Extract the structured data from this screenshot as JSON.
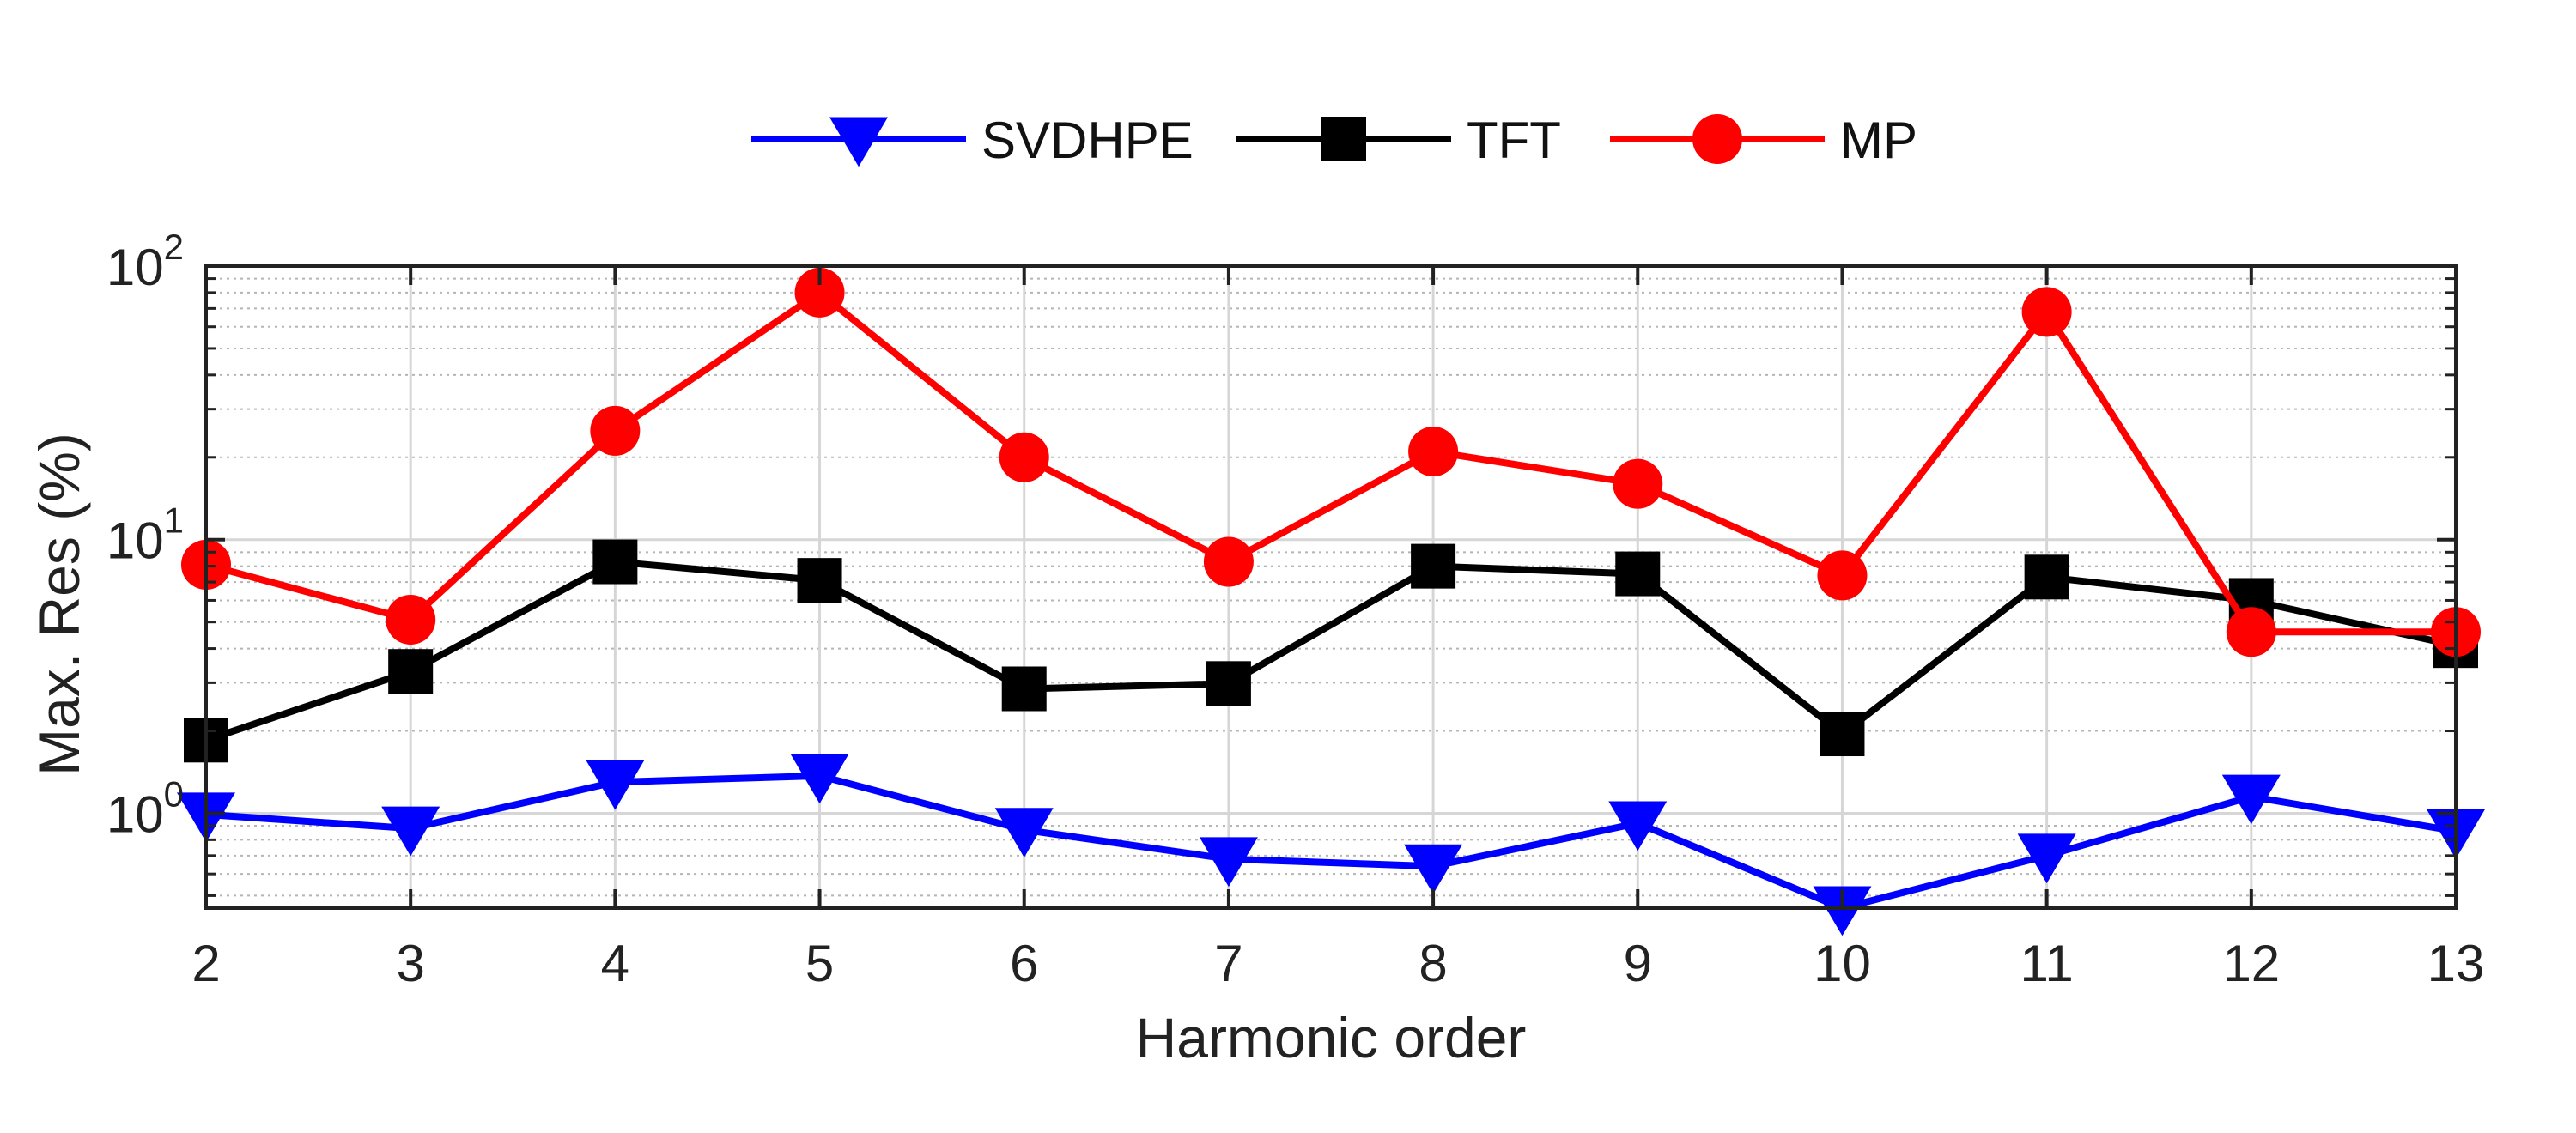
{
  "chart_data": {
    "type": "line",
    "xlabel": "Harmonic order",
    "ylabel": "Max. Res (%)",
    "x": [
      2,
      3,
      4,
      5,
      6,
      7,
      8,
      9,
      10,
      11,
      12,
      13
    ],
    "xlim": [
      2,
      13
    ],
    "ylim": [
      0.45,
      100
    ],
    "yscale": "log",
    "ytick_values": [
      1,
      10,
      100
    ],
    "ytick_labels": [
      {
        "base": "10",
        "exp": "0"
      },
      {
        "base": "10",
        "exp": "1"
      },
      {
        "base": "10",
        "exp": "2"
      }
    ],
    "grid": true,
    "minor_grid": true,
    "legend_position": "top-center",
    "series": [
      {
        "name": "SVDHPE",
        "color": "#0000ff",
        "marker": "triangle-down",
        "values": [
          0.99,
          0.88,
          1.3,
          1.37,
          0.87,
          0.68,
          0.64,
          0.92,
          0.45,
          0.7,
          1.15,
          0.86
        ]
      },
      {
        "name": "TFT",
        "color": "#000000",
        "marker": "square",
        "values": [
          1.85,
          3.3,
          8.3,
          7.1,
          2.85,
          2.98,
          8.0,
          7.5,
          1.95,
          7.3,
          6.0,
          4.1
        ]
      },
      {
        "name": "MP",
        "color": "#ff0000",
        "marker": "circle",
        "values": [
          8.1,
          5.1,
          25.0,
          80.0,
          20.0,
          8.3,
          21.0,
          16.0,
          7.4,
          68.0,
          4.6,
          4.6
        ]
      }
    ]
  }
}
